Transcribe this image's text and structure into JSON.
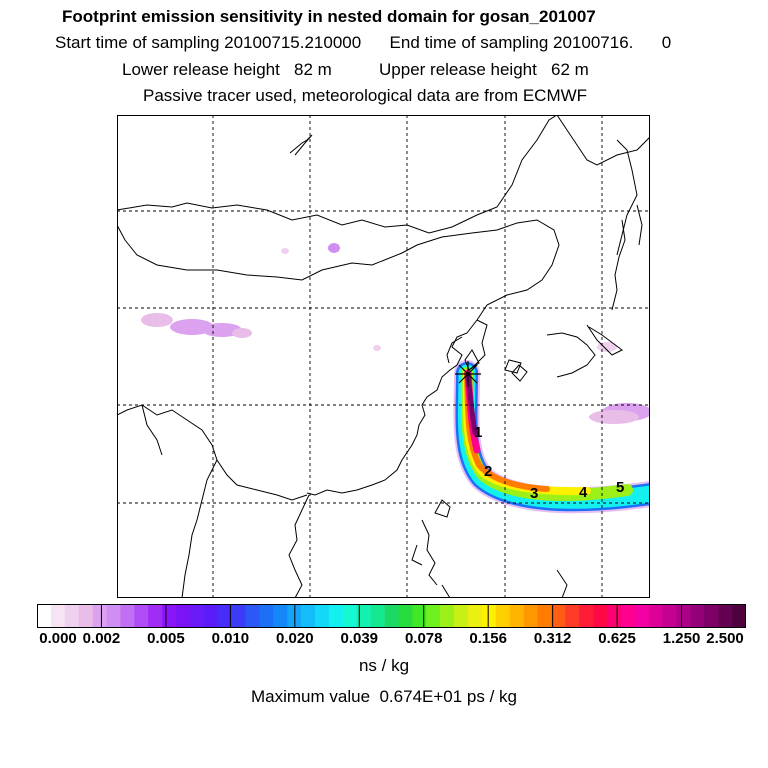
{
  "header": {
    "title": "Footprint emission sensitivity in nested domain for gosan_201007",
    "sampling_line": "Start time of sampling 20100715.210000      End time of sampling 20100716.      0",
    "release_line": "Lower release height   82 m          Upper release height   62 m",
    "tracer_line": "Passive tracer used, meteorological data are from ECMWF"
  },
  "map": {
    "receptor_marker": "star-icon",
    "day_labels": [
      "1",
      "2",
      "3",
      "4",
      "5"
    ]
  },
  "colorbar": {
    "tick_labels": [
      "0.000",
      "0.002",
      "0.005",
      "0.010",
      "0.020",
      "0.039",
      "0.078",
      "0.156",
      "0.312",
      "0.625",
      "1.250",
      "2.500"
    ],
    "colors": [
      "#ffffff",
      "#f6e3f6",
      "#efd0ef",
      "#e8bde8",
      "#dca2ef",
      "#d08ef2",
      "#c270f3",
      "#b04cf5",
      "#a02cf6",
      "#8c14f8",
      "#7a14f7",
      "#6a1cf8",
      "#5a1cf8",
      "#4a2cf8",
      "#3c3cf8",
      "#2c58f8",
      "#1c70f8",
      "#1488f8",
      "#14a4f8",
      "#14bcf8",
      "#14d8f8",
      "#14f0f0",
      "#14f8d4",
      "#14f0b0",
      "#14e890",
      "#1cd864",
      "#28dc40",
      "#40e828",
      "#70f020",
      "#9cf018",
      "#c8f014",
      "#ecf010",
      "#fff000",
      "#ffd000",
      "#ffb400",
      "#ff9800",
      "#ff7c00",
      "#ff5c14",
      "#ff3c28",
      "#ff1c38",
      "#ff0848",
      "#ff0070",
      "#ff0090",
      "#f400a4",
      "#dc0098",
      "#c40090",
      "#ac0088",
      "#940078",
      "#7c0068",
      "#640050",
      "#4c003c"
    ],
    "units": "ns / kg",
    "max_value_label": "Maximum value  0.674E+01 ps / kg"
  }
}
